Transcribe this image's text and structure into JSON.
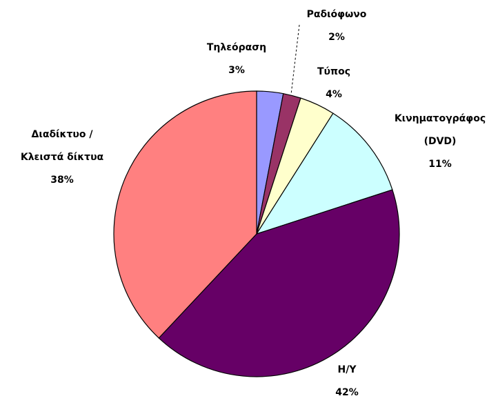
{
  "chart_data": {
    "type": "pie",
    "categories": [
      "Τηλεόραση",
      "Ραδιόφωνο",
      "Τύπος",
      "Κινηματογράφος (DVD)",
      "Η/Υ",
      "Διαδίκτυο / Κλειστά δίκτυα"
    ],
    "values": [
      3,
      2,
      4,
      11,
      42,
      38
    ],
    "value_labels": [
      "3%",
      "2%",
      "4%",
      "11%",
      "42%",
      "38%"
    ],
    "colors": [
      "#9999ff",
      "#993366",
      "#ffffcc",
      "#ccffff",
      "#660066",
      "#ff8080"
    ]
  }
}
